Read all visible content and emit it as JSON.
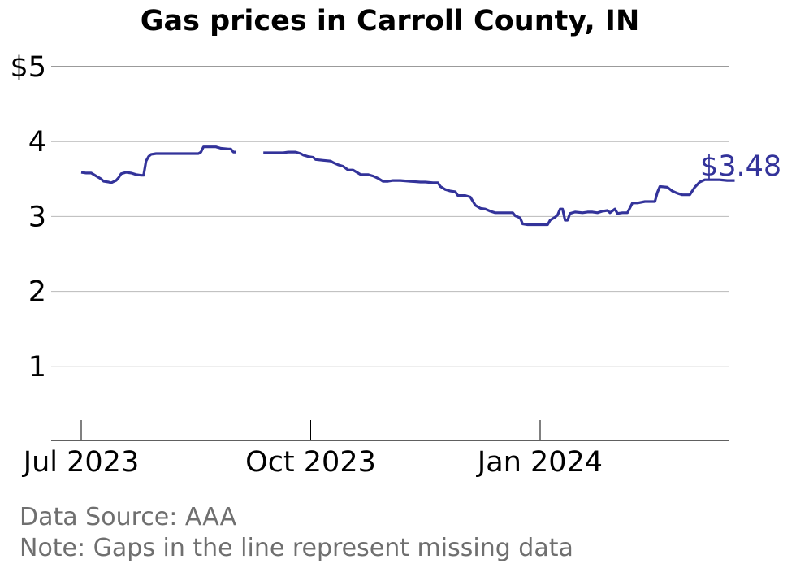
{
  "chart_data": {
    "type": "line",
    "title": "Gas prices in Carroll County, IN",
    "ylim": [
      0,
      5
    ],
    "yticks": [
      {
        "value": 1,
        "label": "1"
      },
      {
        "value": 2,
        "label": "2"
      },
      {
        "value": 3,
        "label": "3"
      },
      {
        "value": 4,
        "label": "4"
      },
      {
        "value": 5,
        "label": "$5"
      }
    ],
    "xlim": [
      "2023-06-29",
      "2024-04-07"
    ],
    "xticks": [
      {
        "date": "2023-07-01",
        "label": "Jul 2023"
      },
      {
        "date": "2023-10-01",
        "label": "Oct 2023"
      },
      {
        "date": "2024-01-01",
        "label": "Jan 2024"
      }
    ],
    "grid": true,
    "line_color": "#33339a",
    "end_label": "$3.48",
    "source_note": "Data Source: AAA",
    "gap_note": "Note: Gaps in the line represent missing data",
    "series": [
      {
        "segments": [
          [
            [
              "2023-07-01",
              3.59
            ],
            [
              "2023-07-03",
              3.58
            ],
            [
              "2023-07-05",
              3.58
            ],
            [
              "2023-07-07",
              3.54
            ],
            [
              "2023-07-09",
              3.5
            ],
            [
              "2023-07-10",
              3.47
            ],
            [
              "2023-07-12",
              3.46
            ],
            [
              "2023-07-13",
              3.45
            ],
            [
              "2023-07-15",
              3.48
            ],
            [
              "2023-07-16",
              3.52
            ],
            [
              "2023-07-17",
              3.57
            ],
            [
              "2023-07-19",
              3.59
            ],
            [
              "2023-07-21",
              3.58
            ],
            [
              "2023-07-23",
              3.56
            ],
            [
              "2023-07-25",
              3.55
            ],
            [
              "2023-07-26",
              3.55
            ],
            [
              "2023-07-27",
              3.74
            ],
            [
              "2023-07-28",
              3.8
            ],
            [
              "2023-07-29",
              3.83
            ],
            [
              "2023-07-31",
              3.84
            ],
            [
              "2023-08-02",
              3.84
            ],
            [
              "2023-08-06",
              3.84
            ],
            [
              "2023-08-10",
              3.84
            ],
            [
              "2023-08-14",
              3.84
            ],
            [
              "2023-08-17",
              3.84
            ],
            [
              "2023-08-18",
              3.86
            ],
            [
              "2023-08-19",
              3.93
            ],
            [
              "2023-08-21",
              3.93
            ],
            [
              "2023-08-24",
              3.93
            ],
            [
              "2023-08-26",
              3.91
            ],
            [
              "2023-08-29",
              3.9
            ],
            [
              "2023-08-30",
              3.9
            ],
            [
              "2023-08-31",
              3.86
            ],
            [
              "2023-09-01",
              3.86
            ]
          ],
          [
            [
              "2023-09-12",
              3.85
            ],
            [
              "2023-09-15",
              3.85
            ],
            [
              "2023-09-18",
              3.85
            ],
            [
              "2023-09-20",
              3.85
            ],
            [
              "2023-09-22",
              3.86
            ],
            [
              "2023-09-25",
              3.86
            ],
            [
              "2023-09-27",
              3.84
            ],
            [
              "2023-09-28",
              3.82
            ],
            [
              "2023-09-30",
              3.8
            ],
            [
              "2023-10-02",
              3.79
            ],
            [
              "2023-10-03",
              3.76
            ],
            [
              "2023-10-06",
              3.75
            ],
            [
              "2023-10-09",
              3.74
            ],
            [
              "2023-10-10",
              3.72
            ],
            [
              "2023-10-12",
              3.69
            ],
            [
              "2023-10-14",
              3.67
            ],
            [
              "2023-10-16",
              3.62
            ],
            [
              "2023-10-18",
              3.62
            ],
            [
              "2023-10-21",
              3.56
            ],
            [
              "2023-10-24",
              3.56
            ],
            [
              "2023-10-26",
              3.54
            ],
            [
              "2023-10-28",
              3.51
            ],
            [
              "2023-10-30",
              3.47
            ],
            [
              "2023-11-01",
              3.47
            ],
            [
              "2023-11-03",
              3.48
            ],
            [
              "2023-11-06",
              3.48
            ],
            [
              "2023-11-10",
              3.47
            ],
            [
              "2023-11-14",
              3.46
            ],
            [
              "2023-11-16",
              3.46
            ],
            [
              "2023-11-19",
              3.45
            ],
            [
              "2023-11-21",
              3.45
            ],
            [
              "2023-11-22",
              3.4
            ],
            [
              "2023-11-24",
              3.36
            ],
            [
              "2023-11-26",
              3.34
            ],
            [
              "2023-11-28",
              3.33
            ],
            [
              "2023-11-29",
              3.28
            ],
            [
              "2023-12-02",
              3.28
            ],
            [
              "2023-12-04",
              3.26
            ],
            [
              "2023-12-06",
              3.15
            ],
            [
              "2023-12-08",
              3.11
            ],
            [
              "2023-12-10",
              3.1
            ],
            [
              "2023-12-12",
              3.07
            ],
            [
              "2023-12-14",
              3.05
            ],
            [
              "2023-12-16",
              3.05
            ],
            [
              "2023-12-19",
              3.05
            ],
            [
              "2023-12-21",
              3.05
            ],
            [
              "2023-12-22",
              3.01
            ],
            [
              "2023-12-24",
              2.98
            ],
            [
              "2023-12-25",
              2.9
            ],
            [
              "2023-12-27",
              2.89
            ],
            [
              "2023-12-29",
              2.89
            ],
            [
              "2024-01-01",
              2.89
            ],
            [
              "2024-01-04",
              2.89
            ],
            [
              "2024-01-05",
              2.95
            ],
            [
              "2024-01-07",
              2.99
            ],
            [
              "2024-01-08",
              3.02
            ],
            [
              "2024-01-09",
              3.1
            ],
            [
              "2024-01-10",
              3.1
            ],
            [
              "2024-01-11",
              2.95
            ],
            [
              "2024-01-12",
              2.95
            ],
            [
              "2024-01-13",
              3.04
            ],
            [
              "2024-01-15",
              3.06
            ],
            [
              "2024-01-18",
              3.05
            ],
            [
              "2024-01-20",
              3.06
            ],
            [
              "2024-01-22",
              3.06
            ],
            [
              "2024-01-24",
              3.05
            ],
            [
              "2024-01-26",
              3.07
            ],
            [
              "2024-01-28",
              3.08
            ],
            [
              "2024-01-29",
              3.05
            ],
            [
              "2024-01-31",
              3.1
            ],
            [
              "2024-02-01",
              3.04
            ],
            [
              "2024-02-03",
              3.05
            ],
            [
              "2024-02-05",
              3.05
            ],
            [
              "2024-02-07",
              3.18
            ],
            [
              "2024-02-09",
              3.18
            ],
            [
              "2024-02-12",
              3.2
            ],
            [
              "2024-02-16",
              3.2
            ],
            [
              "2024-02-17",
              3.32
            ],
            [
              "2024-02-18",
              3.4
            ],
            [
              "2024-02-21",
              3.39
            ],
            [
              "2024-02-23",
              3.34
            ],
            [
              "2024-02-25",
              3.31
            ],
            [
              "2024-02-27",
              3.29
            ],
            [
              "2024-03-01",
              3.29
            ],
            [
              "2024-03-03",
              3.39
            ],
            [
              "2024-03-05",
              3.46
            ],
            [
              "2024-03-07",
              3.49
            ],
            [
              "2024-03-10",
              3.49
            ],
            [
              "2024-03-13",
              3.49
            ],
            [
              "2024-03-16",
              3.48
            ],
            [
              "2024-03-19",
              3.48
            ]
          ]
        ]
      }
    ]
  }
}
